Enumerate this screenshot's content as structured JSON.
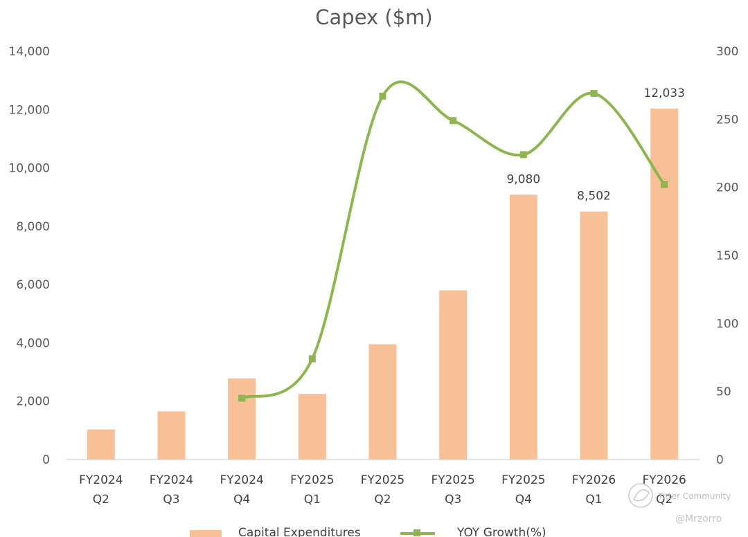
{
  "chart_data": {
    "type": "bar",
    "title": "Capex ($m)",
    "categories": [
      [
        "FY2024",
        "Q2"
      ],
      [
        "FY2024",
        "Q3"
      ],
      [
        "FY2024",
        "Q4"
      ],
      [
        "FY2025",
        "Q1"
      ],
      [
        "FY2025",
        "Q2"
      ],
      [
        "FY2025",
        "Q3"
      ],
      [
        "FY2025",
        "Q4"
      ],
      [
        "FY2026",
        "Q1"
      ],
      [
        "FY2026",
        "Q2"
      ]
    ],
    "series": [
      {
        "name": "Capital Expenditures",
        "type": "bar",
        "axis": "left",
        "color": "#f8c096",
        "values": [
          1030,
          1650,
          2780,
          2250,
          3950,
          5800,
          9080,
          8502,
          12033
        ],
        "data_labels": [
          "",
          "",
          "",
          "",
          "",
          "",
          "9,080",
          "8,502",
          "12,033"
        ]
      },
      {
        "name": "YOY Growth(%)",
        "type": "line",
        "smooth": true,
        "marker": "square",
        "axis": "right",
        "color": "#8db550",
        "values": [
          null,
          null,
          45,
          74,
          267,
          249,
          224,
          269,
          202
        ]
      }
    ],
    "y_left": {
      "min": 0,
      "max": 14000,
      "step": 2000,
      "ticks": [
        "0",
        "2,000",
        "4,000",
        "6,000",
        "8,000",
        "10,000",
        "12,000",
        "14,000"
      ]
    },
    "y_right": {
      "min": 0,
      "max": 300,
      "step": 50,
      "ticks": [
        "0",
        "50",
        "100",
        "150",
        "200",
        "250",
        "300"
      ]
    },
    "grid": false,
    "legend_position": "bottom"
  },
  "watermark": {
    "community": "Titter Community",
    "handle": "@Mrzorro"
  }
}
